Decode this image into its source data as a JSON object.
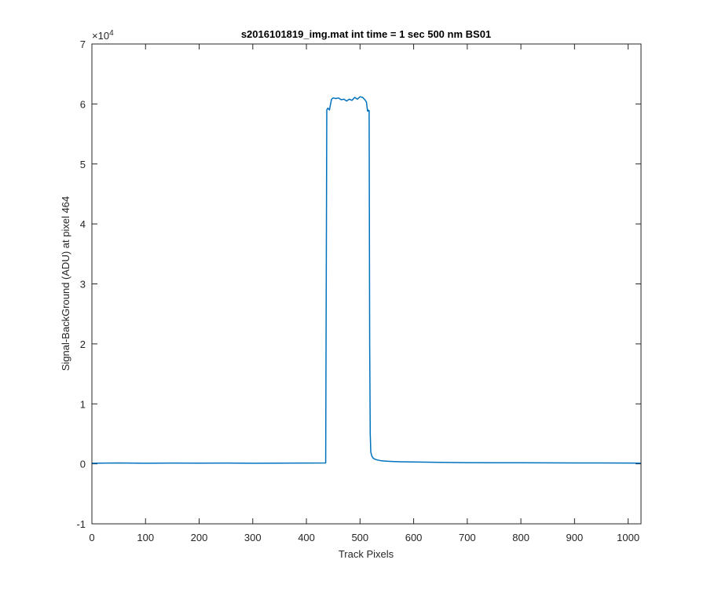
{
  "chart_data": {
    "type": "line",
    "title": "s2016101819_img.mat int time = 1 sec  500 nm BS01",
    "xlabel": "Track Pixels",
    "ylabel": "Signal-BackGround (ADU) at pixel 464",
    "y_exponent_label": "×10",
    "y_exponent_power": "4",
    "xlim": [
      0,
      1024
    ],
    "ylim": [
      -10000,
      70000
    ],
    "xticks": [
      0,
      100,
      200,
      300,
      400,
      500,
      600,
      700,
      800,
      900,
      1000
    ],
    "xtick_labels": [
      "0",
      "100",
      "200",
      "300",
      "400",
      "500",
      "600",
      "700",
      "800",
      "900",
      "1000"
    ],
    "yticks": [
      -10000,
      0,
      10000,
      20000,
      30000,
      40000,
      50000,
      60000,
      70000
    ],
    "ytick_labels": [
      "-1",
      "0",
      "1",
      "2",
      "3",
      "4",
      "5",
      "6",
      "7"
    ],
    "grid": false,
    "line_color": "#0072BD",
    "series": [
      {
        "x": [
          0,
          50,
          100,
          150,
          200,
          250,
          300,
          350,
          400,
          436,
          437,
          438,
          440,
          443,
          445,
          447,
          450,
          455,
          460,
          465,
          470,
          475,
          480,
          485,
          490,
          495,
          500,
          505,
          510,
          512,
          514,
          515,
          516,
          517,
          518,
          519,
          520,
          522,
          525,
          530,
          540,
          550,
          560,
          575,
          600,
          650,
          700,
          800,
          900,
          1000,
          1024
        ],
        "y": [
          100,
          150,
          100,
          130,
          110,
          140,
          100,
          120,
          130,
          150,
          30000,
          59000,
          59300,
          59000,
          60000,
          60800,
          61000,
          60900,
          61000,
          60700,
          60800,
          60500,
          60800,
          60600,
          61100,
          60800,
          61200,
          61100,
          60600,
          60300,
          58800,
          59000,
          58800,
          58900,
          20000,
          5000,
          2000,
          1300,
          900,
          700,
          500,
          450,
          400,
          350,
          300,
          250,
          200,
          180,
          150,
          130,
          120
        ]
      }
    ]
  }
}
